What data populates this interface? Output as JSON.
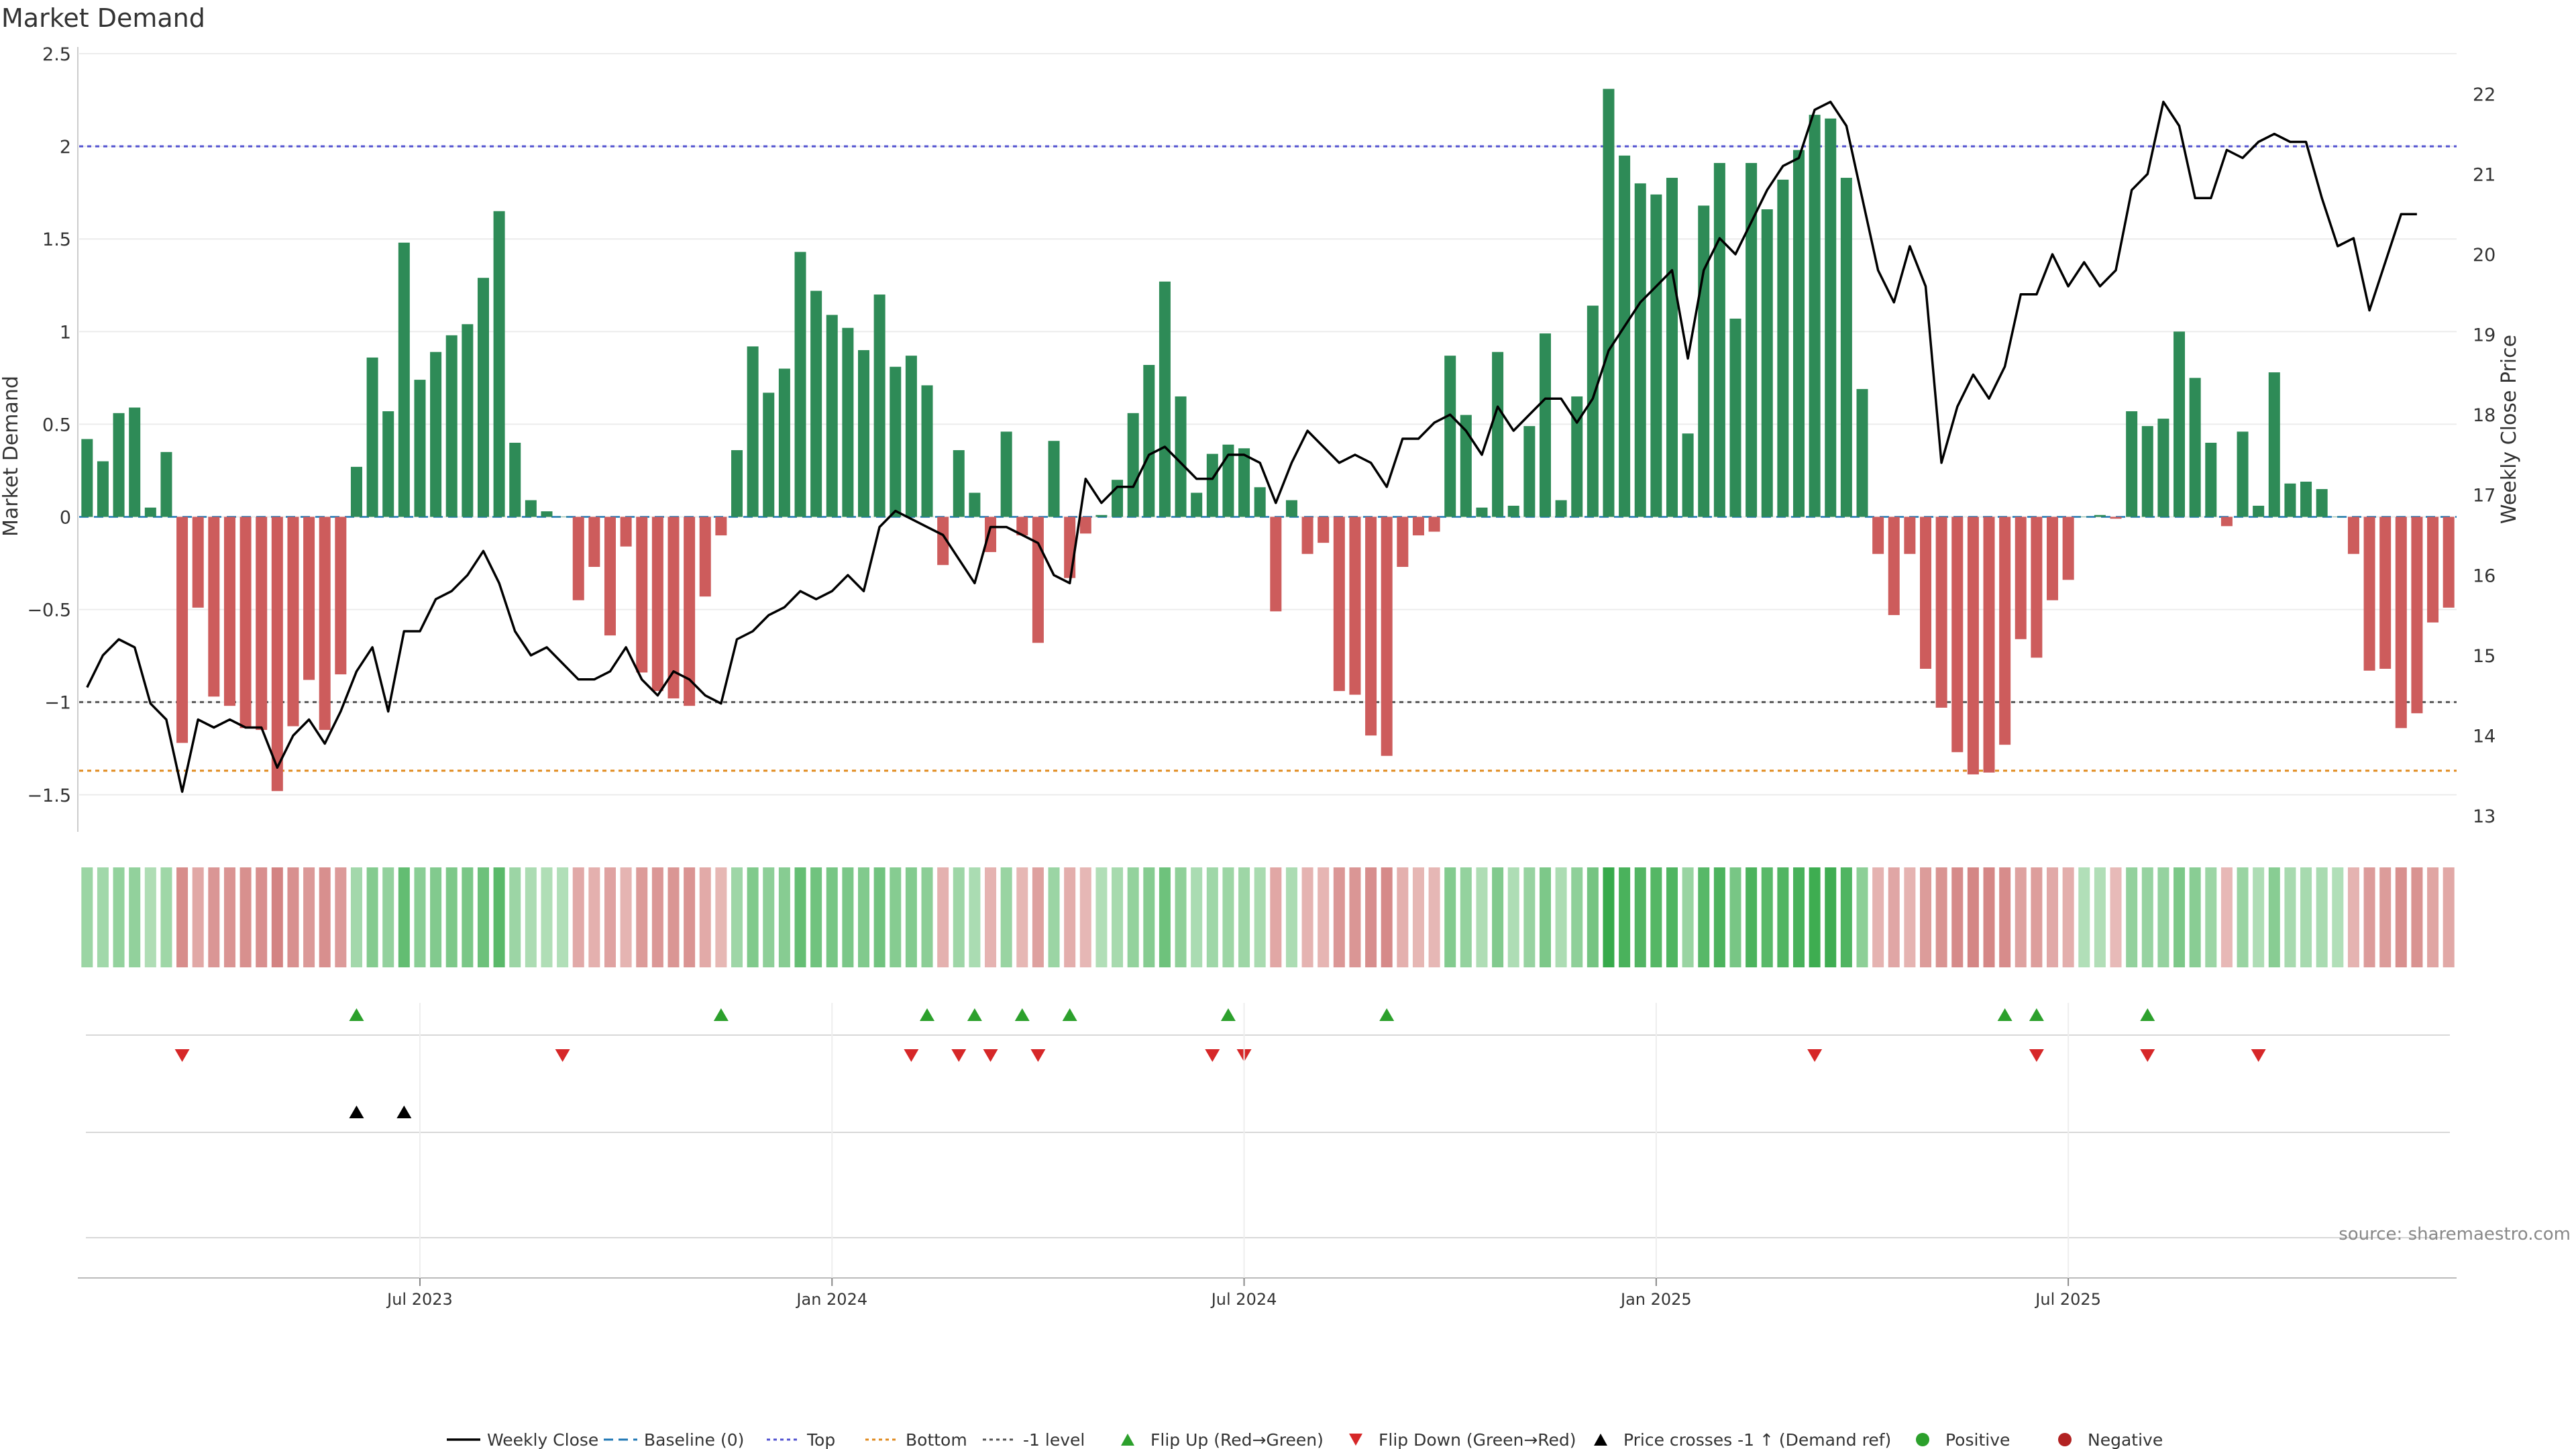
{
  "chart_data": {
    "type": "bar",
    "title": "Market Demand",
    "ylabel_left": "Market Demand",
    "ylabel_right": "Weekly Close Price",
    "ylim_left": [
      -1.7,
      2.5
    ],
    "ylim_right": [
      12.8,
      22.5
    ],
    "yticks_left": [
      {
        "value": 2.5,
        "label": "2.5"
      },
      {
        "value": 2,
        "label": "2"
      },
      {
        "value": 1.5,
        "label": "1.5"
      },
      {
        "value": 1,
        "label": "1"
      },
      {
        "value": 0.5,
        "label": "0.5"
      },
      {
        "value": 0,
        "label": "0"
      },
      {
        "value": -0.5,
        "label": "−0.5"
      },
      {
        "value": -1,
        "label": "−1"
      },
      {
        "value": -1.5,
        "label": "−1.5"
      }
    ],
    "yticks_right": [
      {
        "value": 22,
        "label": "22"
      },
      {
        "value": 21,
        "label": "21"
      },
      {
        "value": 20,
        "label": "20"
      },
      {
        "value": 19,
        "label": "19"
      },
      {
        "value": 18,
        "label": "18"
      },
      {
        "value": 17,
        "label": "17"
      },
      {
        "value": 16,
        "label": "16"
      },
      {
        "value": 15,
        "label": "15"
      },
      {
        "value": 14,
        "label": "14"
      },
      {
        "value": 13,
        "label": "13"
      }
    ],
    "xticks": [
      {
        "index": 21,
        "label": "Jul 2023"
      },
      {
        "index": 47,
        "label": "Jan 2024"
      },
      {
        "index": 73,
        "label": "Jul 2024"
      },
      {
        "index": 99,
        "label": "Jan 2025"
      },
      {
        "index": 125,
        "label": "Jul 2025"
      }
    ],
    "reference_lines": {
      "baseline": 0,
      "top": 2.0,
      "bottom": -1.37,
      "minus_one": -1.0
    },
    "demand": [
      0.42,
      0.3,
      0.56,
      0.59,
      0.05,
      0.35,
      -1.22,
      -0.49,
      -0.97,
      -1.02,
      -1.14,
      -1.15,
      -1.48,
      -1.13,
      -0.88,
      -1.15,
      -0.85,
      0.27,
      0.86,
      0.57,
      1.48,
      0.74,
      0.89,
      0.98,
      1.04,
      1.29,
      1.65,
      0.4,
      0.09,
      0.03,
      0,
      -0.45,
      -0.27,
      -0.64,
      -0.16,
      -0.84,
      -0.94,
      -0.98,
      -1.02,
      -0.43,
      -0.1,
      0.36,
      0.92,
      0.67,
      0.8,
      1.43,
      1.22,
      1.09,
      1.02,
      0.9,
      1.2,
      0.81,
      0.87,
      0.71,
      -0.26,
      0.36,
      0.13,
      -0.19,
      0.46,
      -0.1,
      -0.68,
      0.41,
      -0.33,
      -0.09,
      0.01,
      0.2,
      0.56,
      0.82,
      1.27,
      0.65,
      0.13,
      0.34,
      0.39,
      0.37,
      0.16,
      -0.51,
      0.09,
      -0.2,
      -0.14,
      -0.94,
      -0.96,
      -1.18,
      -1.29,
      -0.27,
      -0.1,
      -0.08,
      0.87,
      0.55,
      0.05,
      0.89,
      0.06,
      0.49,
      0.99,
      0.09,
      0.65,
      1.14,
      2.31,
      1.95,
      1.8,
      1.74,
      1.83,
      0.45,
      1.68,
      1.91,
      1.07,
      1.91,
      1.66,
      1.82,
      1.98,
      2.17,
      2.15,
      1.83,
      0.69,
      -0.2,
      -0.53,
      -0.2,
      -0.82,
      -1.03,
      -1.27,
      -1.39,
      -1.38,
      -1.23,
      -0.66,
      -0.76,
      -0.45,
      -0.34,
      0,
      0.01,
      -0.01,
      0.57,
      0.49,
      0.53,
      1.0,
      0.75,
      0.4,
      -0.05,
      0.46,
      0.06,
      0.78,
      0.18,
      0.19,
      0.15,
      0,
      -0.2,
      -0.83,
      -0.82,
      -1.14,
      -1.06,
      -0.57,
      -0.49
    ],
    "weekly_close": [
      14.6,
      15.0,
      15.2,
      15.1,
      14.4,
      14.2,
      13.3,
      14.2,
      14.1,
      14.2,
      14.1,
      14.1,
      13.6,
      14.0,
      14.2,
      13.9,
      14.3,
      14.8,
      15.1,
      14.3,
      15.3,
      15.3,
      15.7,
      15.8,
      16.0,
      16.3,
      15.9,
      15.3,
      15.0,
      15.1,
      14.9,
      14.7,
      14.7,
      14.8,
      15.1,
      14.7,
      14.5,
      14.8,
      14.7,
      14.5,
      14.4,
      15.2,
      15.3,
      15.5,
      15.6,
      15.8,
      15.7,
      15.8,
      16.0,
      15.8,
      16.6,
      16.8,
      16.7,
      16.6,
      16.5,
      16.2,
      15.9,
      16.6,
      16.6,
      16.5,
      16.4,
      16.0,
      15.9,
      17.2,
      16.9,
      17.1,
      17.1,
      17.5,
      17.6,
      17.4,
      17.2,
      17.2,
      17.5,
      17.5,
      17.4,
      16.9,
      17.4,
      17.8,
      17.6,
      17.4,
      17.5,
      17.4,
      17.1,
      17.7,
      17.7,
      17.9,
      18.0,
      17.8,
      17.5,
      18.1,
      17.8,
      18.0,
      18.2,
      18.2,
      17.9,
      18.2,
      18.8,
      19.1,
      19.4,
      19.6,
      19.8,
      18.7,
      19.8,
      20.2,
      20.0,
      20.4,
      20.8,
      21.1,
      21.2,
      21.8,
      21.9,
      21.6,
      20.7,
      19.8,
      19.4,
      20.1,
      19.6,
      17.4,
      18.1,
      18.5,
      18.2,
      18.6,
      19.5,
      19.5,
      20.0,
      19.6,
      19.9,
      19.6,
      19.8,
      20.8,
      21.0,
      21.9,
      21.6,
      20.7,
      20.7,
      21.3,
      21.2,
      21.4,
      21.5,
      21.4,
      21.4,
      20.7,
      20.1,
      20.2,
      19.3,
      19.9,
      20.5,
      20.5
    ],
    "flip_up_indices": [
      17,
      40,
      53,
      56,
      59,
      62,
      72,
      82,
      121,
      123,
      130
    ],
    "flip_down_indices": [
      6,
      30,
      52,
      55,
      57,
      60,
      71,
      73,
      109,
      123,
      130,
      137
    ],
    "price_cross_indices": [
      17,
      20
    ],
    "heat_strip": "demand intensity per week",
    "legend": [
      {
        "label": "Weekly Close",
        "kind": "line",
        "color": "#000000"
      },
      {
        "label": "Baseline (0)",
        "kind": "dash",
        "color": "#1f77b4"
      },
      {
        "label": "Top",
        "kind": "dot",
        "color": "#5050d0"
      },
      {
        "label": "Bottom",
        "kind": "dot",
        "color": "#e08a1e"
      },
      {
        "label": "-1 level",
        "kind": "dot",
        "color": "#555555"
      },
      {
        "label": "Flip Up (Red→Green)",
        "kind": "tri-up",
        "color": "#2ca02c"
      },
      {
        "label": "Flip Down (Green→Red)",
        "kind": "tri-down",
        "color": "#d62728"
      },
      {
        "label": "Price crosses -1 ↑ (Demand ref)",
        "kind": "tri-up",
        "color": "#000000"
      },
      {
        "label": "Positive",
        "kind": "circle",
        "color": "#2ca02c"
      },
      {
        "label": "Negative",
        "kind": "circle",
        "color": "#b22222"
      }
    ],
    "source": "source: sharemaestro.com"
  },
  "colors": {
    "positive_bar": "#2e8b57",
    "negative_bar": "#cd5c5c",
    "line": "#000000",
    "top_line": "#5050d0",
    "bottom_line": "#e08a1e",
    "minus_one_line": "#555555",
    "baseline": "#1f77b4",
    "flip_up": "#2ca02c",
    "flip_down": "#d62728",
    "grid": "#ececec"
  }
}
